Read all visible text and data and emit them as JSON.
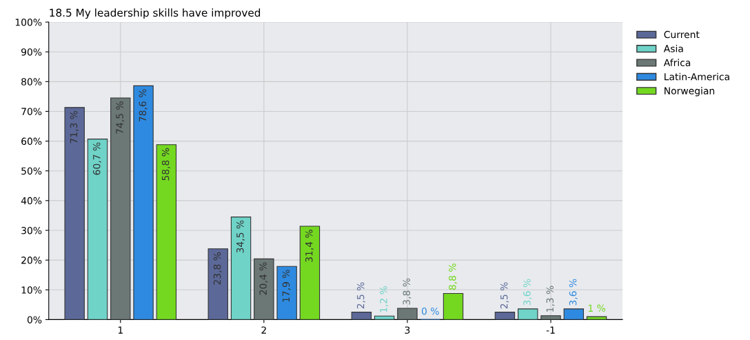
{
  "chart_data": {
    "type": "bar",
    "title": "18.5 My leadership skills have improved",
    "categories": [
      "1",
      "2",
      "3",
      "-1"
    ],
    "series": [
      {
        "name": "Current",
        "color": "#5b6898",
        "values": [
          71.3,
          23.8,
          2.5,
          2.5
        ],
        "value_labels": [
          "71,3 %",
          "23,8 %",
          "2,5 %",
          "2,5 %"
        ]
      },
      {
        "name": "Asia",
        "color": "#6fd3c8",
        "values": [
          60.7,
          34.5,
          1.2,
          3.6
        ],
        "value_labels": [
          "60,7 %",
          "34,5 %",
          "1,2 %",
          "3,6 %"
        ]
      },
      {
        "name": "Africa",
        "color": "#6b7876",
        "values": [
          74.5,
          20.4,
          3.8,
          1.3
        ],
        "value_labels": [
          "74,5 %",
          "20,4 %",
          "3,8 %",
          "1,3 %"
        ]
      },
      {
        "name": "Latin-America",
        "color": "#2e8ae0",
        "values": [
          78.6,
          17.9,
          0,
          3.6
        ],
        "value_labels": [
          "78,6 %",
          "17,9 %",
          "0 %",
          "3,6 %"
        ]
      },
      {
        "name": "Norwegian",
        "color": "#74d820",
        "values": [
          58.8,
          31.4,
          8.8,
          1
        ],
        "value_labels": [
          "58,8 %",
          "31,4 %",
          "8,8 %",
          "1 %"
        ]
      }
    ],
    "ylim": [
      0,
      100
    ],
    "yticks": [
      {
        "value": 0,
        "label": "0%"
      },
      {
        "value": 10,
        "label": "10%"
      },
      {
        "value": 20,
        "label": "20%"
      },
      {
        "value": 30,
        "label": "30%"
      },
      {
        "value": 40,
        "label": "40%"
      },
      {
        "value": 50,
        "label": "50%"
      },
      {
        "value": 60,
        "label": "60%"
      },
      {
        "value": 70,
        "label": "70%"
      },
      {
        "value": 80,
        "label": "80%"
      },
      {
        "value": 90,
        "label": "90%"
      },
      {
        "value": 100,
        "label": "100%"
      }
    ],
    "grid": true,
    "legend": "top right"
  }
}
